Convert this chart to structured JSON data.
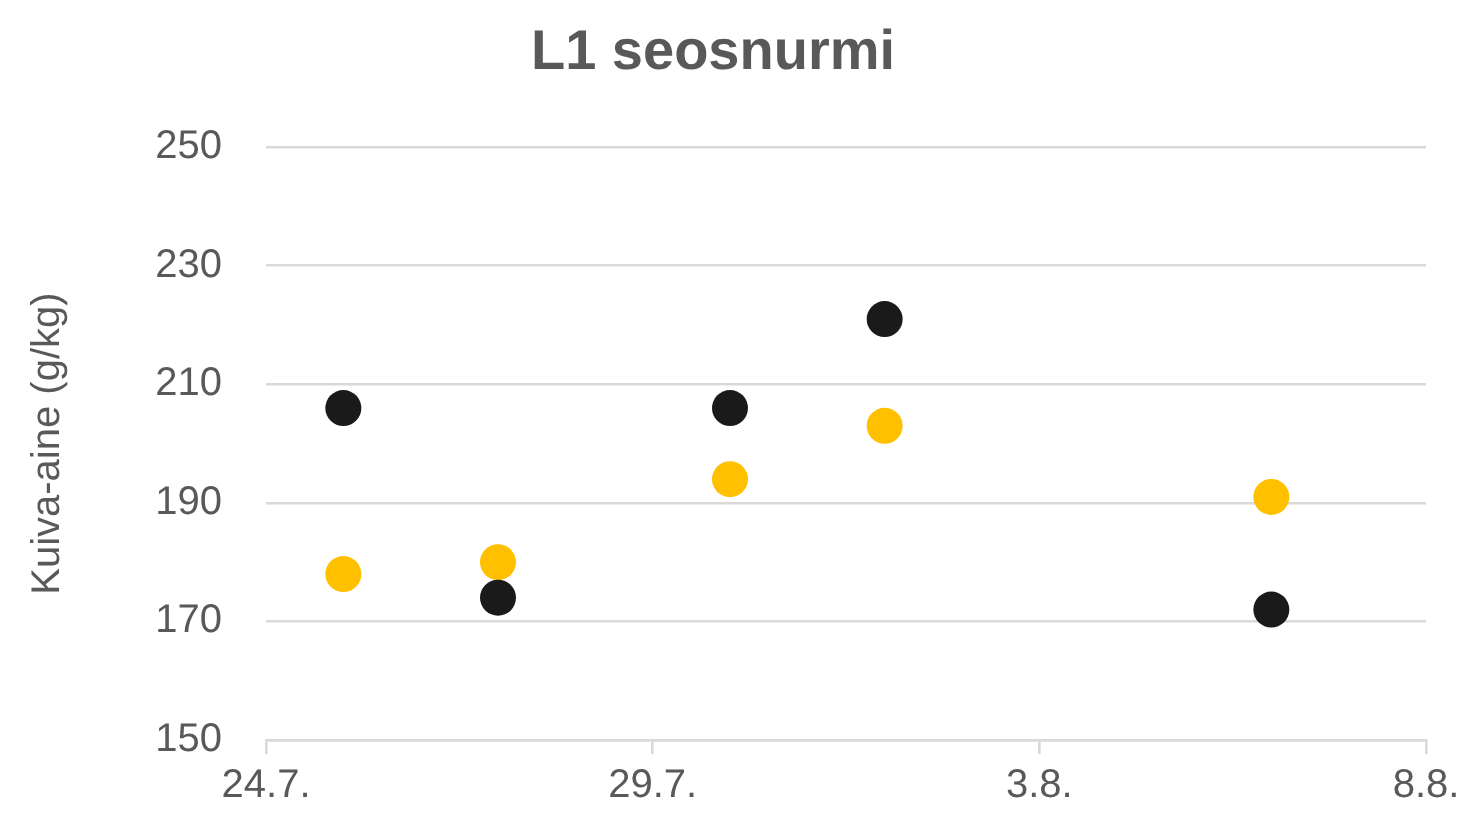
{
  "chart_data": {
    "type": "scatter",
    "title": "L1 seosnurmi",
    "ylabel": "Kuiva-aine (g/kg)",
    "x": [
      "--07-25",
      "--07-27",
      "--07-30",
      "--08-01",
      "--08-06"
    ],
    "series": [
      {
        "color": "#1a1a1a",
        "values": [
          206,
          174,
          206,
          221,
          172
        ]
      },
      {
        "color": "#ffc000",
        "values": [
          178,
          180,
          194,
          203,
          191
        ]
      }
    ],
    "xlim": [
      "--07-24",
      "--08-08"
    ],
    "xticks": [
      {
        "value": "--07-24",
        "label": "24.7."
      },
      {
        "value": "--07-29",
        "label": "29.7."
      },
      {
        "value": "--08-03",
        "label": "3.8."
      },
      {
        "value": "--08-08",
        "label": "8.8."
      }
    ],
    "ylim": [
      150,
      250
    ],
    "yticks": [
      150,
      170,
      190,
      210,
      230,
      250
    ],
    "grid": "y",
    "marker": "circle"
  }
}
